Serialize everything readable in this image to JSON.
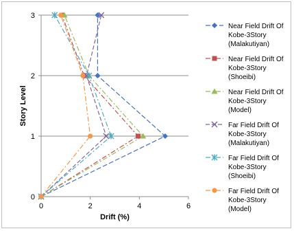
{
  "chart_data": {
    "type": "line",
    "xlabel": "Drift (%)",
    "ylabel": "Story Level",
    "xlim": [
      0,
      6
    ],
    "ylim": [
      0,
      3
    ],
    "x_ticks": [
      0,
      2,
      4,
      6
    ],
    "y_ticks": [
      0,
      1,
      2,
      3
    ],
    "grid": "horizontal",
    "legend_position": "right",
    "series": [
      {
        "name": "Near Field Drift Of Kobe-3Story (Malakutiyan)",
        "legend_lines": [
          "Near Field Drift Of",
          "Kobe-3Story",
          "(Malakutiyan)"
        ],
        "color": "#4472C4",
        "marker": "diamond",
        "points": [
          [
            0,
            0
          ],
          [
            5.05,
            1
          ],
          [
            2.3,
            2
          ],
          [
            2.3,
            3
          ]
        ]
      },
      {
        "name": "Near Field Drift Of Kobe-3Story (Shoeibi)",
        "legend_lines": [
          "Near Field Drift Of",
          "Kobe-3Story",
          "(Shoeibi)"
        ],
        "color": "#C0504D",
        "marker": "square",
        "points": [
          [
            0,
            0
          ],
          [
            3.95,
            1
          ],
          [
            1.75,
            2
          ],
          [
            0.85,
            3
          ]
        ]
      },
      {
        "name": "Near Field Drift Of Kobe-3Story (Model)",
        "legend_lines": [
          "Near Field Drift Of",
          "Kobe-3Story",
          "(Model)"
        ],
        "color": "#9BBB59",
        "marker": "triangle",
        "points": [
          [
            0,
            0
          ],
          [
            4.15,
            1
          ],
          [
            1.95,
            2
          ],
          [
            0.95,
            3
          ]
        ]
      },
      {
        "name": "Far Field Drift Of Kobe-3Story (Malakutiyan)",
        "legend_lines": [
          "Far Field Drift Of",
          "Kobe-3Story",
          "(Malakutiyan)"
        ],
        "color": "#8064A2",
        "marker": "x",
        "points": [
          [
            0,
            0
          ],
          [
            2.65,
            1
          ],
          [
            1.85,
            2
          ],
          [
            2.45,
            3
          ]
        ]
      },
      {
        "name": "Far Field Drift Of Kobe-3Story (Shoeibi)",
        "legend_lines": [
          "Far Field Drift Of",
          "Kobe-3Story",
          "(Shoeibi)"
        ],
        "color": "#4BACC6",
        "marker": "star",
        "points": [
          [
            0,
            0
          ],
          [
            2.85,
            1
          ],
          [
            1.95,
            2
          ],
          [
            0.55,
            3
          ]
        ]
      },
      {
        "name": "Far Field Drift Of Kobe-3Story (Model)",
        "legend_lines": [
          "Far Field Drift Of",
          "Kobe-3Story",
          "(Model)"
        ],
        "color": "#F79646",
        "marker": "circle",
        "points": [
          [
            0,
            0
          ],
          [
            2.0,
            1
          ],
          [
            1.7,
            2
          ],
          [
            0.8,
            3
          ]
        ]
      }
    ]
  }
}
